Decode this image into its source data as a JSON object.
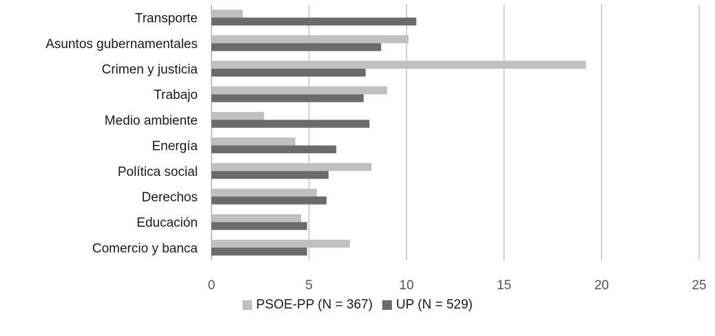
{
  "chart_data": {
    "type": "bar",
    "orientation": "horizontal",
    "categories": [
      "Transporte",
      "Asuntos gubernamentales",
      "Crimen y justicia",
      "Trabajo",
      "Medio ambiente",
      "Energía",
      "Política social",
      "Derechos",
      "Educación",
      "Comercio y banca"
    ],
    "series": [
      {
        "name": "PSOE-PP (N = 367)",
        "color": "#c0c0c0",
        "values": [
          1.6,
          10.1,
          19.2,
          9.0,
          2.7,
          4.3,
          8.2,
          5.4,
          4.6,
          7.1
        ]
      },
      {
        "name": "UP (N = 529)",
        "color": "#6b6b6b",
        "values": [
          10.5,
          8.7,
          7.9,
          7.8,
          8.1,
          6.4,
          6.0,
          5.9,
          4.9,
          4.9
        ]
      }
    ],
    "xlim": [
      0,
      25
    ],
    "xticks": [
      "0",
      "5",
      "10",
      "15",
      "20",
      "25"
    ],
    "grid": "vertical",
    "legend_position": "bottom"
  }
}
